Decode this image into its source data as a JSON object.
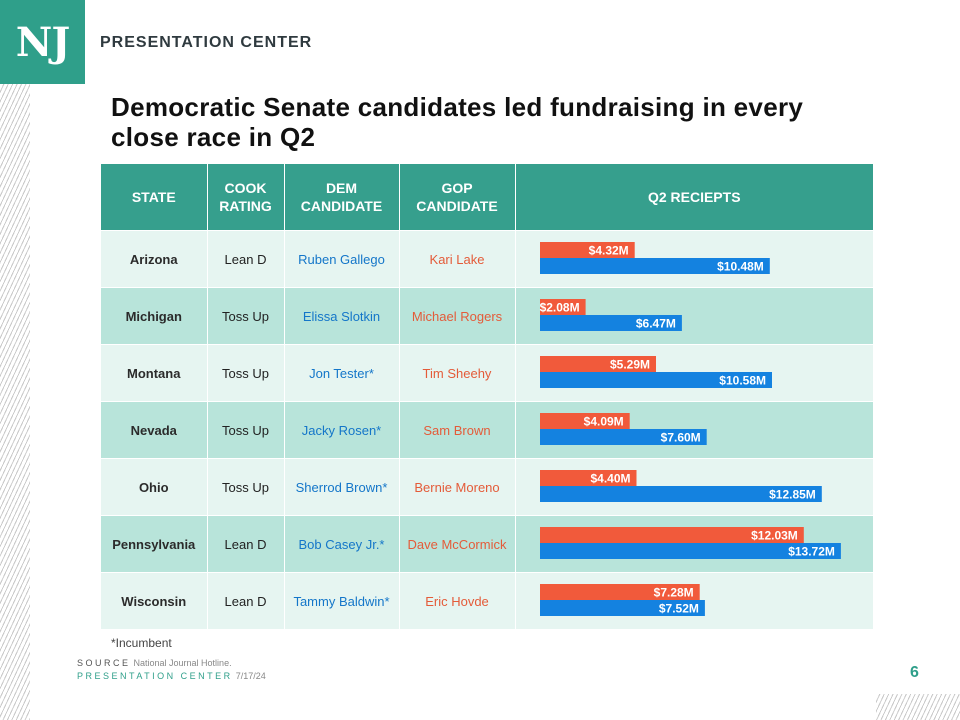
{
  "brand": {
    "logo": "NJ",
    "name": "PRESENTATION CENTER"
  },
  "title": "Democratic Senate candidates led fundraising in every close race in Q2",
  "headers": {
    "state": "STATE",
    "rating": "COOK RATING",
    "dem": "DEM CANDIDATE",
    "gop": "GOP CANDIDATE",
    "receipts": "Q2 RECIEPTS"
  },
  "rows": [
    {
      "state": "Arizona",
      "rating": "Lean D",
      "dem": "Ruben  Gallego",
      "gop": "Kari Lake",
      "gop_label": "$4.32M",
      "dem_label": "$10.48M"
    },
    {
      "state": "Michigan",
      "rating": "Toss Up",
      "dem": "Elissa Slotkin",
      "gop": "Michael Rogers",
      "gop_label": "$2.08M",
      "dem_label": "$6.47M"
    },
    {
      "state": "Montana",
      "rating": "Toss Up",
      "dem": "Jon Tester*",
      "gop": "Tim  Sheehy",
      "gop_label": "$5.29M",
      "dem_label": "$10.58M"
    },
    {
      "state": "Nevada",
      "rating": "Toss Up",
      "dem": "Jacky Rosen*",
      "gop": "Sam Brown",
      "gop_label": "$4.09M",
      "dem_label": "$7.60M"
    },
    {
      "state": "Ohio",
      "rating": "Toss Up",
      "dem": "Sherrod  Brown*",
      "gop": "Bernie  Moreno",
      "gop_label": "$4.40M",
      "dem_label": "$12.85M"
    },
    {
      "state": "Pennsylvania",
      "rating": "Lean D",
      "dem": "Bob Casey Jr.*",
      "gop": "Dave McCormick",
      "gop_label": "$12.03M",
      "dem_label": "$13.72M"
    },
    {
      "state": "Wisconsin",
      "rating": "Lean D",
      "dem": "Tammy Baldwin*",
      "gop": "Eric Hovde",
      "gop_label": "$7.28M",
      "dem_label": "$7.52M"
    }
  ],
  "chart_data": {
    "type": "bar",
    "categories": [
      "Arizona",
      "Michigan",
      "Montana",
      "Nevada",
      "Ohio",
      "Pennsylvania",
      "Wisconsin"
    ],
    "series": [
      {
        "values": [
          4.32,
          2.08,
          5.29,
          4.09,
          4.4,
          12.03,
          7.28
        ],
        "color": "#f15a3b"
      },
      {
        "values": [
          10.48,
          6.47,
          10.58,
          7.6,
          12.85,
          13.72,
          7.52
        ],
        "color": "#1482e0"
      }
    ],
    "title": "Q2 RECIEPTS",
    "xlim": [
      0,
      14.5
    ],
    "unit": "$M"
  },
  "colors": {
    "header_bg": "#369f8d",
    "row_light": "#e6f5f1",
    "row_dark": "#b8e4da",
    "dem": "#1476c9",
    "gop": "#e45b39",
    "dem_bar": "#1482e0",
    "gop_bar": "#f15a3b"
  },
  "footnote": "*Incumbent",
  "source": {
    "label": "SOURCE",
    "value": "National Journal Hotline."
  },
  "presentation_center": {
    "label": "PRESENTATION CENTER",
    "date": "7/17/24"
  },
  "page_number": "6"
}
